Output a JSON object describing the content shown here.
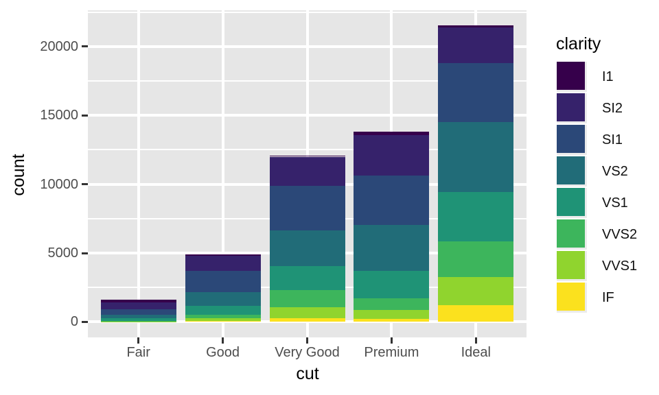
{
  "chart_data": {
    "type": "bar",
    "stacked": true,
    "title": "",
    "xlabel": "cut",
    "ylabel": "count",
    "categories": [
      "Fair",
      "Good",
      "Very Good",
      "Premium",
      "Ideal"
    ],
    "series": [
      {
        "name": "I1",
        "color": "#36004B",
        "values": [
          210,
          96,
          84,
          205,
          146
        ]
      },
      {
        "name": "SI2",
        "color": "#36226B",
        "values": [
          466,
          1081,
          2100,
          2949,
          2598
        ]
      },
      {
        "name": "SI1",
        "color": "#2B4878",
        "values": [
          408,
          1560,
          3240,
          3575,
          4282
        ]
      },
      {
        "name": "VS2",
        "color": "#216C78",
        "values": [
          261,
          978,
          2591,
          3357,
          5071
        ]
      },
      {
        "name": "VS1",
        "color": "#1F9376",
        "values": [
          170,
          648,
          1775,
          1989,
          3589
        ]
      },
      {
        "name": "VVS2",
        "color": "#3DB55C",
        "values": [
          69,
          286,
          1235,
          870,
          2606
        ]
      },
      {
        "name": "VVS1",
        "color": "#90D42E",
        "values": [
          17,
          186,
          789,
          616,
          2047
        ]
      },
      {
        "name": "IF",
        "color": "#FBE11E",
        "values": [
          9,
          71,
          268,
          230,
          1212
        ]
      }
    ],
    "stack_order": "first-series-on-top",
    "totals": [
      1610,
      4906,
      12082,
      13791,
      21551
    ],
    "y_ticks": [
      0,
      5000,
      10000,
      15000,
      20000
    ],
    "y_tick_labels": [
      "0",
      "5000",
      "10000",
      "15000",
      "20000"
    ],
    "y_minor_ticks": [
      2500,
      7500,
      12500,
      17500,
      22500
    ],
    "ylim": [
      0,
      22630
    ],
    "legend_title": "clarity",
    "legend_position": "right",
    "grid": true,
    "panel_background": "#E6E6E6",
    "gridline_color": "#FFFFFF",
    "axis_text_color": "#4D4D4D",
    "tick_mark_color": "#333333"
  }
}
